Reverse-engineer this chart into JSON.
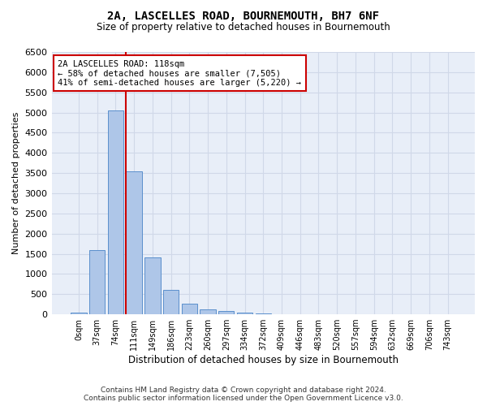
{
  "title": "2A, LASCELLES ROAD, BOURNEMOUTH, BH7 6NF",
  "subtitle": "Size of property relative to detached houses in Bournemouth",
  "xlabel": "Distribution of detached houses by size in Bournemouth",
  "ylabel": "Number of detached properties",
  "footer_line1": "Contains HM Land Registry data © Crown copyright and database right 2024.",
  "footer_line2": "Contains public sector information licensed under the Open Government Licence v3.0.",
  "bin_labels": [
    "0sqm",
    "37sqm",
    "74sqm",
    "111sqm",
    "149sqm",
    "186sqm",
    "223sqm",
    "260sqm",
    "297sqm",
    "334sqm",
    "372sqm",
    "409sqm",
    "446sqm",
    "483sqm",
    "520sqm",
    "557sqm",
    "594sqm",
    "632sqm",
    "669sqm",
    "706sqm",
    "743sqm"
  ],
  "bar_values": [
    50,
    1600,
    5050,
    3550,
    1400,
    600,
    270,
    130,
    80,
    50,
    30,
    10,
    5,
    0,
    0,
    0,
    0,
    0,
    0,
    0,
    0
  ],
  "bar_color": "#aec6e8",
  "bar_edge_color": "#5a8fcc",
  "grid_color": "#d0d8e8",
  "background_color": "#e8eef8",
  "property_size": 118,
  "property_bin_index": 3,
  "vline_color": "#cc0000",
  "annotation_text": "2A LASCELLES ROAD: 118sqm\n← 58% of detached houses are smaller (7,505)\n41% of semi-detached houses are larger (5,220) →",
  "annotation_box_color": "#ffffff",
  "annotation_box_edge": "#cc0000",
  "ylim": [
    0,
    6500
  ],
  "yticks": [
    0,
    500,
    1000,
    1500,
    2000,
    2500,
    3000,
    3500,
    4000,
    4500,
    5000,
    5500,
    6000,
    6500
  ]
}
